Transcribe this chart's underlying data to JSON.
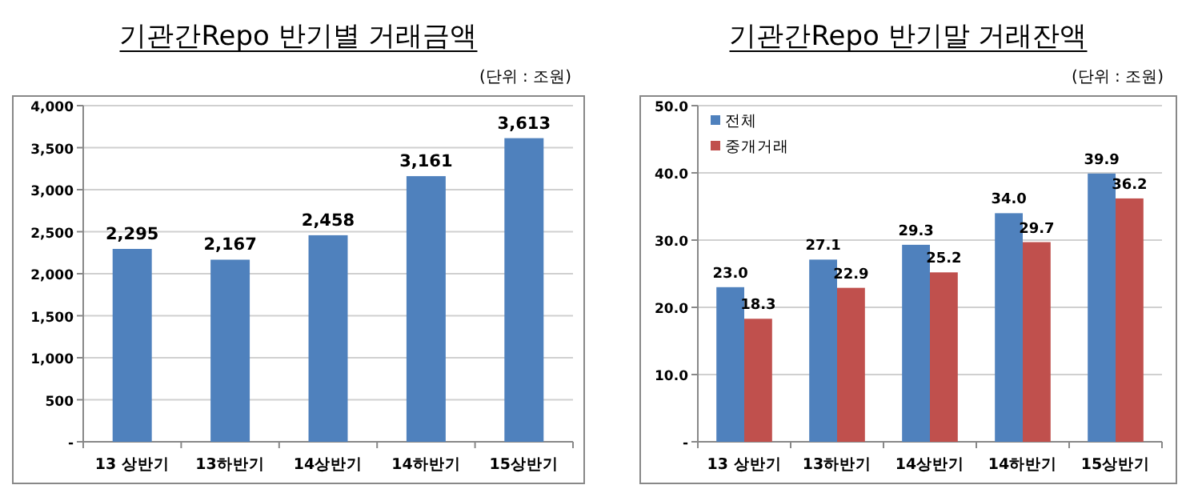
{
  "chart_data": [
    {
      "type": "bar",
      "title": "기관간Repo 반기별 거래금액",
      "annotations": [
        "(단위 : 조원)"
      ],
      "categories": [
        "13 상반기",
        "13하반기",
        "14상반기",
        "14하반기",
        "15상반기"
      ],
      "series": [
        {
          "color": "#4f81bd",
          "values": [
            2295,
            2167,
            2458,
            3161,
            3613
          ],
          "value_labels": [
            "2,295",
            "2,167",
            "2,458",
            "3,161",
            "3,613"
          ]
        }
      ],
      "ylim": [
        0,
        4000
      ],
      "yticks": [
        {
          "value": 0,
          "label": "-"
        },
        {
          "value": 500,
          "label": "500"
        },
        {
          "value": 1000,
          "label": "1,000"
        },
        {
          "value": 1500,
          "label": "1,500"
        },
        {
          "value": 2000,
          "label": "2,000"
        },
        {
          "value": 2500,
          "label": "2,500"
        },
        {
          "value": 3000,
          "label": "3,000"
        },
        {
          "value": 3500,
          "label": "3,500"
        },
        {
          "value": 4000,
          "label": "4,000"
        }
      ],
      "grid": "y",
      "legend": false
    },
    {
      "type": "bar",
      "title": "기관간Repo 반기말 거래잔액",
      "annotations": [
        "(단위 : 조원)"
      ],
      "categories": [
        "13 상반기",
        "13하반기",
        "14상반기",
        "14하반기",
        "15상반기"
      ],
      "series": [
        {
          "name": "전체",
          "color": "#4f81bd",
          "values": [
            23.0,
            27.1,
            29.3,
            34.0,
            39.9
          ],
          "value_labels": [
            "23.0",
            "27.1",
            "29.3",
            "34.0",
            "39.9"
          ]
        },
        {
          "name": "중개거래",
          "color": "#c0504d",
          "values": [
            18.3,
            22.9,
            25.2,
            29.7,
            36.2
          ],
          "value_labels": [
            "18.3",
            "22.9",
            "25.2",
            "29.7",
            "36.2"
          ]
        }
      ],
      "ylim": [
        0,
        50
      ],
      "yticks": [
        {
          "value": 0,
          "label": "-"
        },
        {
          "value": 10,
          "label": "10.0"
        },
        {
          "value": 20,
          "label": "20.0"
        },
        {
          "value": 30,
          "label": "30.0"
        },
        {
          "value": 40,
          "label": "40.0"
        },
        {
          "value": 50,
          "label": "50.0"
        }
      ],
      "grid": "y",
      "legend": "top left"
    }
  ]
}
